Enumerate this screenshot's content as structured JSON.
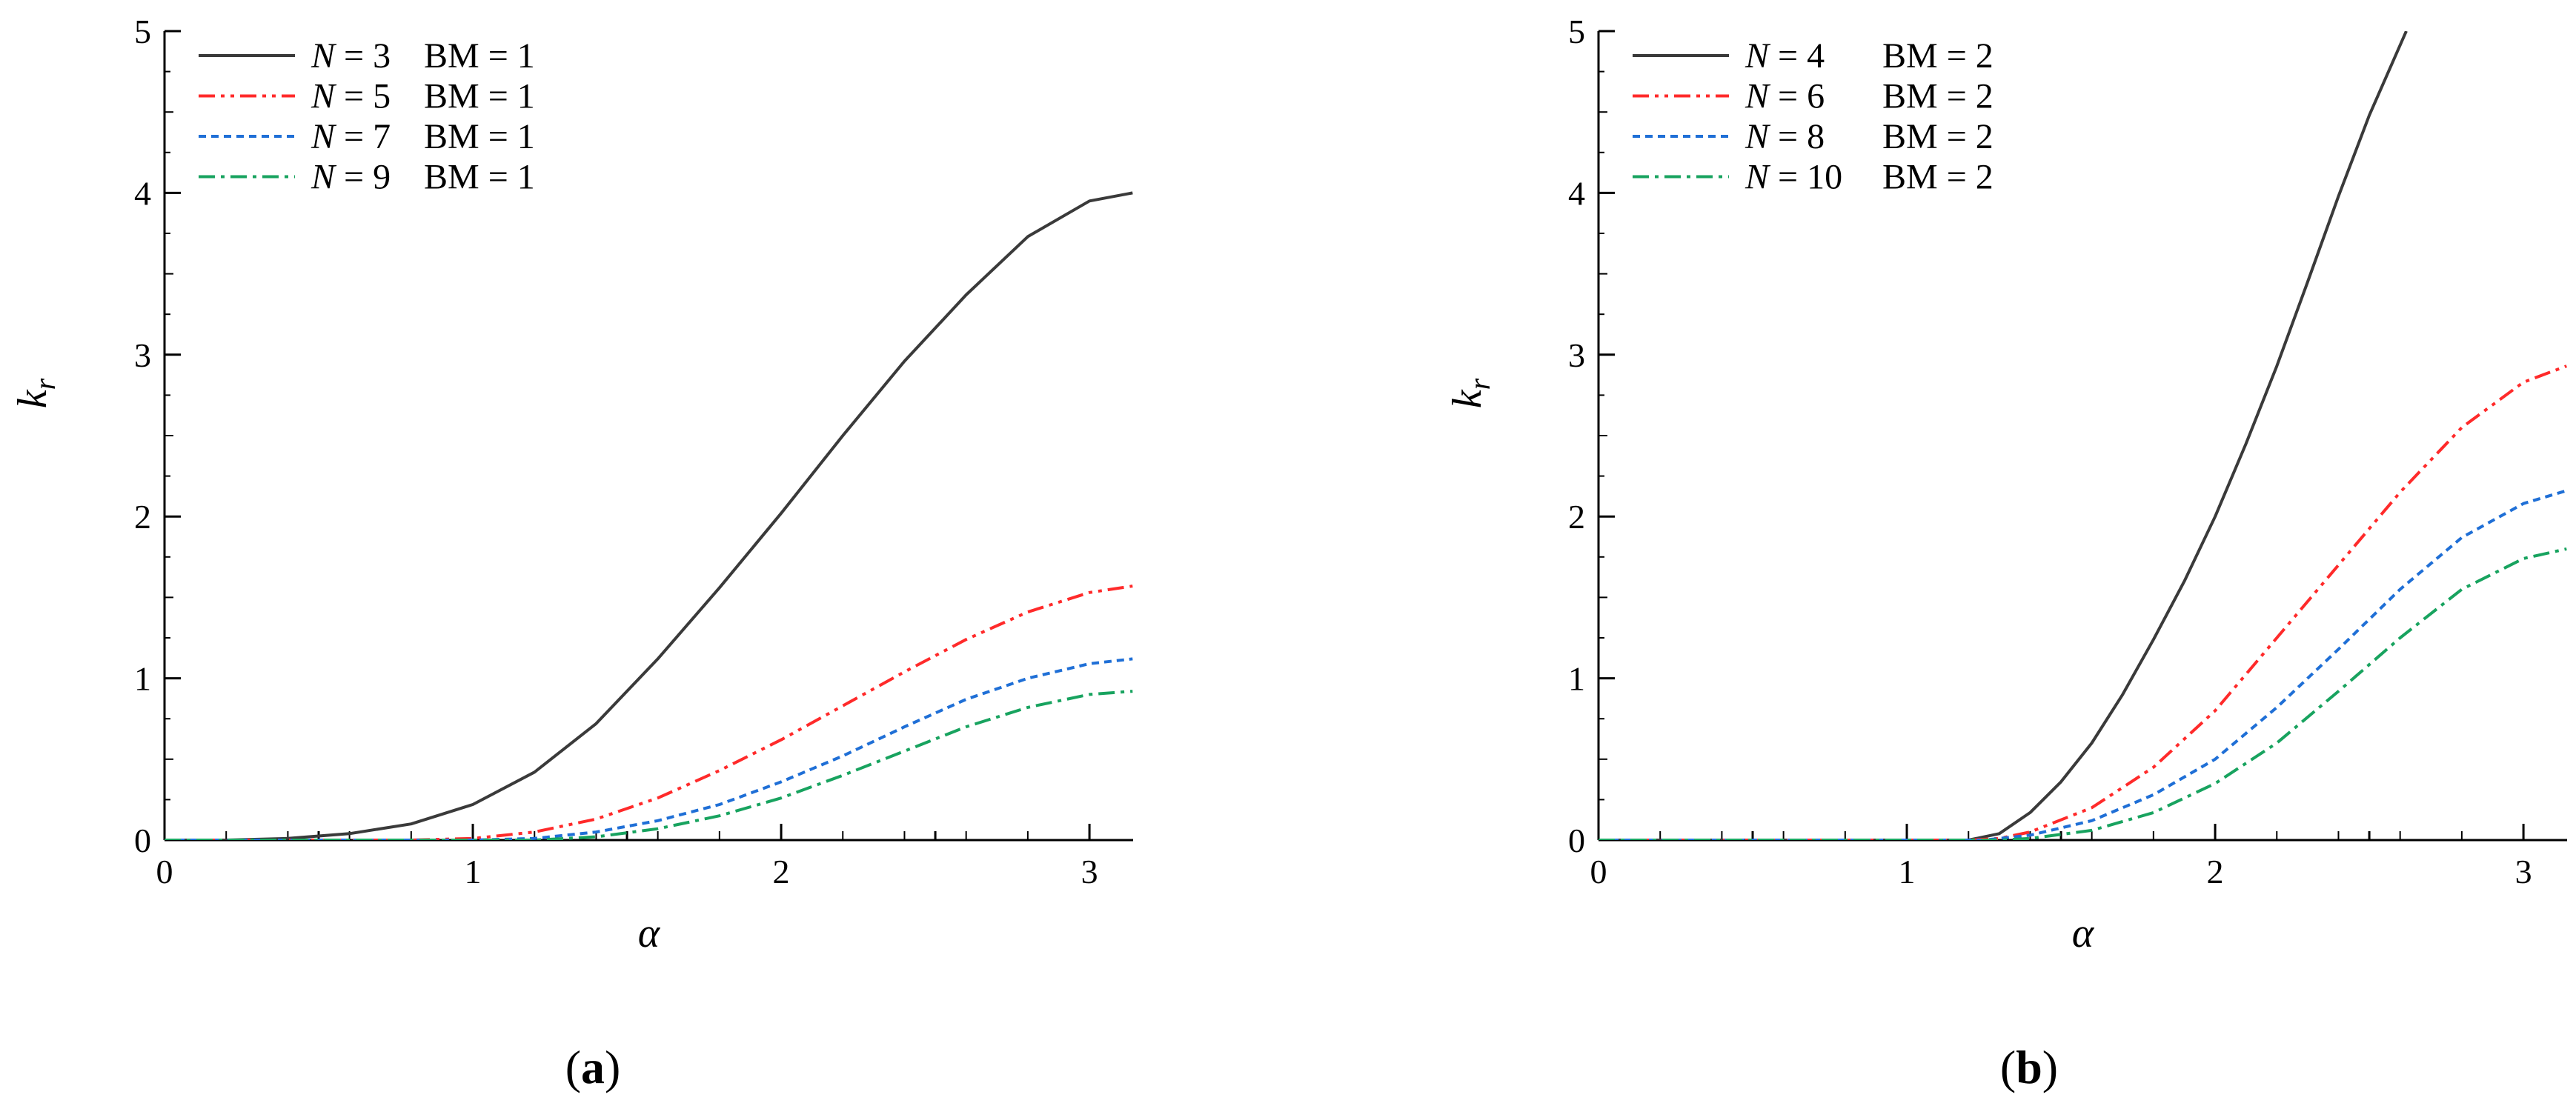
{
  "chart_data": [
    {
      "type": "line",
      "panel_label": "a",
      "xlabel": "α",
      "ylabel_main": "k",
      "ylabel_sub": "r",
      "xlim": [
        0,
        3.1416
      ],
      "ylim": [
        0,
        5
      ],
      "xticks": [
        0,
        1,
        2,
        3
      ],
      "yticks": [
        0,
        1,
        2,
        3,
        4,
        5
      ],
      "grid": false,
      "legend_position": "top-left",
      "series": [
        {
          "legend_n": "N = 3",
          "legend_bm": "BM = 1",
          "color": "#3a3a3a",
          "dash": "",
          "x": [
            0,
            0.2,
            0.4,
            0.6,
            0.8,
            1.0,
            1.2,
            1.4,
            1.6,
            1.8,
            2.0,
            2.2,
            2.4,
            2.6,
            2.8,
            3.0,
            3.14
          ],
          "y": [
            0,
            0.0,
            0.01,
            0.04,
            0.1,
            0.22,
            0.42,
            0.72,
            1.12,
            1.56,
            2.02,
            2.5,
            2.96,
            3.37,
            3.73,
            3.95,
            4.0
          ]
        },
        {
          "legend_n": "N = 5",
          "legend_bm": "BM = 1",
          "color": "#ff2a2a",
          "dash": "22,8,5,8,5,8",
          "x": [
            0,
            0.8,
            1.0,
            1.2,
            1.4,
            1.6,
            1.8,
            2.0,
            2.2,
            2.4,
            2.6,
            2.8,
            3.0,
            3.14
          ],
          "y": [
            0,
            0.0,
            0.01,
            0.05,
            0.13,
            0.26,
            0.43,
            0.62,
            0.83,
            1.04,
            1.24,
            1.41,
            1.53,
            1.57
          ]
        },
        {
          "legend_n": "N = 7",
          "legend_bm": "BM = 1",
          "color": "#1f6fd6",
          "dash": "10,7",
          "x": [
            0,
            1.0,
            1.2,
            1.4,
            1.6,
            1.8,
            2.0,
            2.2,
            2.4,
            2.6,
            2.8,
            3.0,
            3.14
          ],
          "y": [
            0,
            0.0,
            0.01,
            0.05,
            0.12,
            0.22,
            0.36,
            0.52,
            0.7,
            0.87,
            1.0,
            1.09,
            1.12
          ]
        },
        {
          "legend_n": "N = 9",
          "legend_bm": "BM = 1",
          "color": "#18a35f",
          "dash": "22,8,5,8",
          "x": [
            0,
            1.0,
            1.2,
            1.4,
            1.6,
            1.8,
            2.0,
            2.2,
            2.4,
            2.6,
            2.8,
            3.0,
            3.14
          ],
          "y": [
            0,
            0.0,
            0.0,
            0.02,
            0.07,
            0.15,
            0.26,
            0.4,
            0.55,
            0.7,
            0.82,
            0.9,
            0.92
          ]
        }
      ]
    },
    {
      "type": "line",
      "panel_label": "b",
      "xlabel": "α",
      "ylabel_main": "k",
      "ylabel_sub": "r",
      "xlim": [
        0,
        3.1416
      ],
      "ylim": [
        0,
        5
      ],
      "xticks": [
        0,
        1,
        2,
        3
      ],
      "yticks": [
        0,
        1,
        2,
        3,
        4,
        5
      ],
      "grid": false,
      "legend_position": "top-left",
      "series": [
        {
          "legend_n": "N = 4",
          "legend_bm": "BM = 2",
          "color": "#3a3a3a",
          "dash": "",
          "x": [
            0,
            1.2,
            1.3,
            1.4,
            1.5,
            1.6,
            1.7,
            1.8,
            1.9,
            2.0,
            2.1,
            2.2,
            2.3,
            2.4,
            2.5,
            2.62
          ],
          "y": [
            0,
            0.0,
            0.04,
            0.17,
            0.36,
            0.6,
            0.9,
            1.24,
            1.6,
            2.0,
            2.45,
            2.93,
            3.45,
            3.98,
            4.48,
            5.0
          ]
        },
        {
          "legend_n": "N = 6",
          "legend_bm": "BM = 2",
          "color": "#ff2a2a",
          "dash": "22,8,5,8,5,8",
          "x": [
            0,
            1.2,
            1.3,
            1.4,
            1.6,
            1.8,
            2.0,
            2.2,
            2.4,
            2.6,
            2.8,
            3.0,
            3.14
          ],
          "y": [
            0,
            0.0,
            0.01,
            0.05,
            0.2,
            0.45,
            0.8,
            1.25,
            1.7,
            2.15,
            2.55,
            2.83,
            2.93
          ]
        },
        {
          "legend_n": "N = 8",
          "legend_bm": "BM = 2",
          "color": "#1f6fd6",
          "dash": "10,7",
          "x": [
            0,
            1.25,
            1.4,
            1.6,
            1.8,
            2.0,
            2.2,
            2.4,
            2.6,
            2.8,
            3.0,
            3.14
          ],
          "y": [
            0,
            0.0,
            0.03,
            0.12,
            0.28,
            0.5,
            0.82,
            1.18,
            1.55,
            1.87,
            2.08,
            2.16
          ]
        },
        {
          "legend_n": "N = 10",
          "legend_bm": "BM = 2",
          "color": "#18a35f",
          "dash": "22,8,5,8",
          "x": [
            0,
            1.3,
            1.4,
            1.6,
            1.8,
            2.0,
            2.2,
            2.4,
            2.6,
            2.8,
            3.0,
            3.14
          ],
          "y": [
            0,
            0.0,
            0.01,
            0.06,
            0.17,
            0.35,
            0.6,
            0.92,
            1.25,
            1.55,
            1.74,
            1.8
          ]
        }
      ]
    }
  ]
}
